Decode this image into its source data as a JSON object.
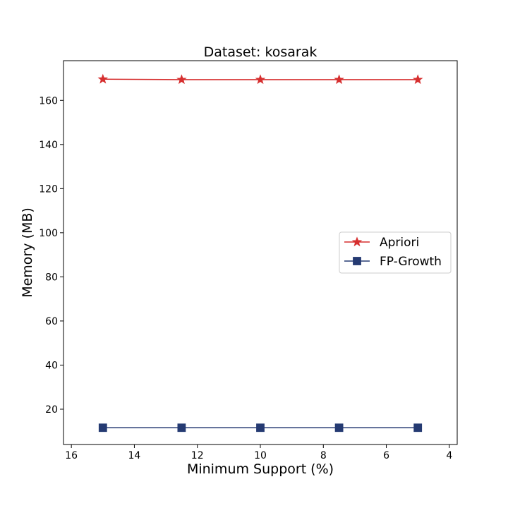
{
  "chart_data": {
    "type": "line",
    "title": "Dataset: kosarak",
    "xlabel": "Minimum Support (%)",
    "ylabel": "Memory (MB)",
    "x": [
      15,
      12.5,
      10,
      7.5,
      5
    ],
    "xlim": [
      16.25,
      3.75
    ],
    "ylim": [
      4,
      178
    ],
    "x_inverted": true,
    "xticks": [
      16,
      14,
      12,
      10,
      8,
      6,
      4
    ],
    "yticks": [
      20,
      40,
      60,
      80,
      100,
      120,
      140,
      160
    ],
    "grid": false,
    "legend_position": "center-right",
    "series": [
      {
        "name": "Apriori",
        "values": [
          169.6,
          169.4,
          169.4,
          169.4,
          169.4
        ],
        "color": "#d62f2f",
        "marker": "star"
      },
      {
        "name": "FP-Growth",
        "values": [
          11.6,
          11.6,
          11.6,
          11.6,
          11.6
        ],
        "color": "#253a72",
        "marker": "square"
      }
    ]
  }
}
